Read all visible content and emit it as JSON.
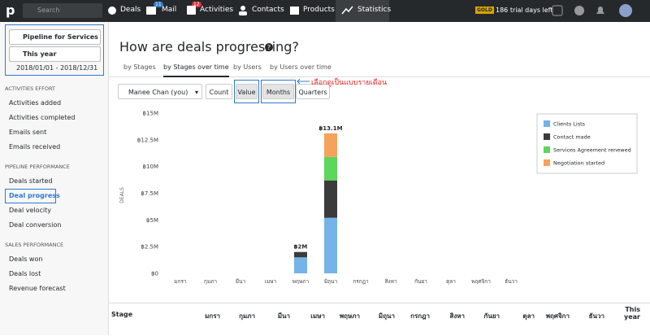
{
  "nav": {
    "logo": "p",
    "search": "Search",
    "items": [
      "Deals",
      "Mail",
      "Activities",
      "Contacts",
      "Products",
      "Statistics"
    ],
    "mail_badge": 11,
    "activities_badge": 12,
    "plan": "GOLD",
    "trial": "186 trial days left"
  },
  "sidebar": {
    "pipeline": "Pipeline for Services",
    "period": "This year",
    "range": "2018/01/01 - 2018/12/31",
    "sections": [
      {
        "title": "ACTIVITIES EFFORT",
        "items": [
          "Activities added",
          "Activities completed",
          "Emails sent",
          "Emails received"
        ]
      },
      {
        "title": "PIPELINE PERFORMANCE",
        "items": [
          "Deals started",
          "Deal progress",
          "Deal velocity",
          "Deal conversion"
        ]
      },
      {
        "title": "SALES PERFORMANCE",
        "items": [
          "Deals won",
          "Deals lost",
          "Revenue forecast"
        ]
      }
    ]
  },
  "main": {
    "title": "How are deals progressing?",
    "tabs": [
      "by Stages",
      "by Stages over time",
      "by Users",
      "by Users over time"
    ],
    "user": "Manee Chan (you)",
    "toggles": [
      "Count",
      "Value",
      "Months",
      "Quarters"
    ],
    "annotation": "เลือกดูเป็นแบบรายเดือน"
  },
  "chart_data": {
    "type": "stacked-bar",
    "ylabel": "DEALS",
    "categories": [
      "มกรา",
      "กุมภา",
      "มีนา",
      "เมษา",
      "พฤษภา",
      "มิถุนา",
      "กรกฎา",
      "สิงหา",
      "กันยา",
      "ตุลา",
      "พฤศจิกา",
      "ธันวา"
    ],
    "series": [
      {
        "name": "Clients Lists",
        "color": "#74b4e8",
        "values": [
          0,
          0,
          0,
          0,
          1500000,
          5200000,
          0,
          0,
          0,
          0,
          0,
          0
        ]
      },
      {
        "name": "Contact made",
        "color": "#3b3b3b",
        "values": [
          0,
          0,
          0,
          0,
          500000,
          3500000,
          0,
          0,
          0,
          0,
          0,
          0
        ]
      },
      {
        "name": "Services Agreement renewed",
        "color": "#5cd65c",
        "values": [
          0,
          0,
          0,
          0,
          0,
          2200000,
          0,
          0,
          0,
          0,
          0,
          0
        ]
      },
      {
        "name": "Negotiation started",
        "color": "#f4a25c",
        "values": [
          0,
          0,
          0,
          0,
          0,
          2200000,
          0,
          0,
          0,
          0,
          0,
          0
        ]
      }
    ],
    "totals": [
      null,
      null,
      null,
      null,
      2000000,
      13100000,
      null,
      null,
      null,
      null,
      null,
      null
    ],
    "total_labels": [
      null,
      null,
      null,
      null,
      "฿2M",
      "฿13.1M",
      null,
      null,
      null,
      null,
      null,
      null
    ],
    "ylim": [
      0,
      15000000
    ],
    "yticks": [
      {
        "value": 0,
        "label": "฿0"
      },
      {
        "value": 2500000,
        "label": "฿2.5M"
      },
      {
        "value": 5000000,
        "label": "฿5M"
      },
      {
        "value": 7500000,
        "label": "฿7.5M"
      },
      {
        "value": 10000000,
        "label": "฿10M"
      },
      {
        "value": 12500000,
        "label": "฿12.5M"
      },
      {
        "value": 15000000,
        "label": "฿15M"
      }
    ],
    "legend": "right",
    "grid": false
  },
  "table": {
    "header": [
      "Stage",
      "มกรา",
      "กุมภา",
      "มีนา",
      "เมษา",
      "พฤษภา",
      "มิถุนา",
      "กรกฎา",
      "สิงหา",
      "กันยา",
      "ตุลา",
      "พฤศจิกา",
      "ธันวา",
      "This year"
    ]
  }
}
